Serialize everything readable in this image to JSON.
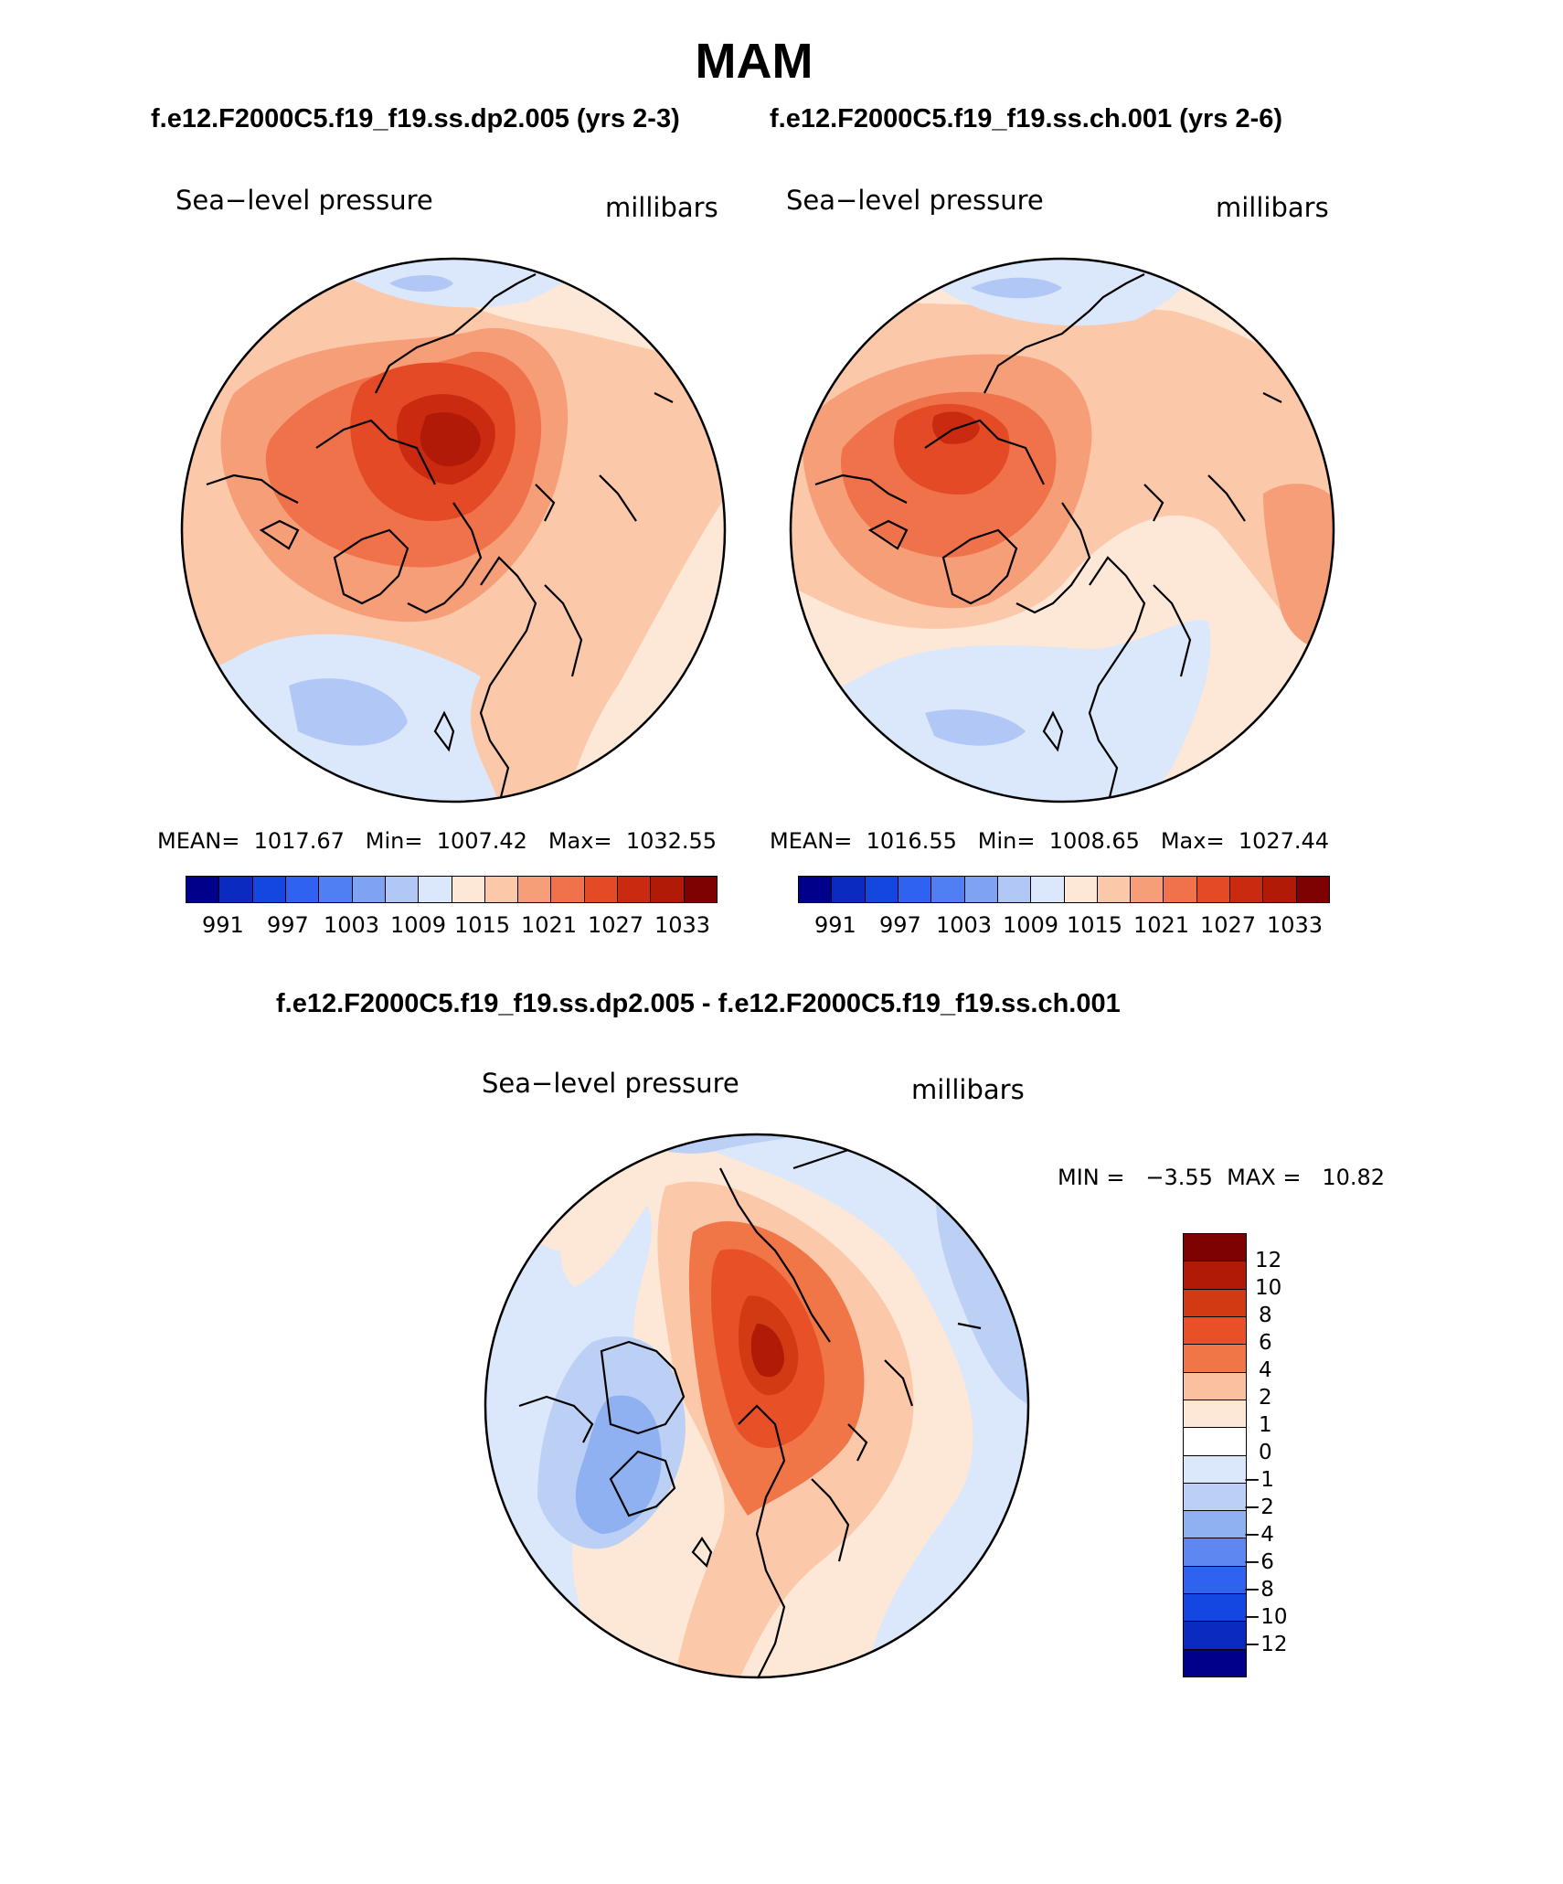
{
  "title": "MAM",
  "top_subtitle_left": "f.e12.F2000C5.f19_f19.ss.dp2.005 (yrs 2-3)",
  "top_subtitle_right": "f.e12.F2000C5.f19_f19.ss.ch.001 (yrs 2-6)",
  "diff_title": "f.e12.F2000C5.f19_f19.ss.dp2.005 - f.e12.F2000C5.f19_f19.ss.ch.001",
  "panels": {
    "left": {
      "variable": "Sea−level pressure",
      "units": "millibars",
      "stats": "MEAN=  1017.67   Min=  1007.42   Max=  1032.55",
      "tick_labels": [
        "991",
        "997",
        "1003",
        "1009",
        "1015",
        "1021",
        "1027",
        "1033"
      ]
    },
    "right": {
      "variable": "Sea−level pressure",
      "units": "millibars",
      "stats": "MEAN=  1016.55   Min=  1008.65   Max=  1027.44",
      "tick_labels": [
        "991",
        "997",
        "1003",
        "1009",
        "1015",
        "1021",
        "1027",
        "1033"
      ]
    },
    "diff": {
      "variable": "Sea−level pressure",
      "units": "millibars",
      "stats": "MIN =   −3.55  MAX =   10.82",
      "tick_labels": [
        "12",
        "10",
        "8",
        "6",
        "4",
        "2",
        "1",
        "0",
        "−1",
        "−2",
        "−4",
        "−6",
        "−8",
        "−10",
        "−12"
      ]
    }
  },
  "chart_data": [
    {
      "type": "contour-map",
      "title": "Sea-level pressure (f.e12.F2000C5.f19_f19.ss.dp2.005, yrs 2-3)",
      "units": "millibars",
      "projection": "north polar stereographic",
      "mean": 1017.67,
      "min": 1007.42,
      "max": 1032.55,
      "levels": [
        991,
        994,
        997,
        1000,
        1003,
        1006,
        1009,
        1012,
        1015,
        1018,
        1021,
        1024,
        1027,
        1030,
        1033
      ]
    },
    {
      "type": "contour-map",
      "title": "Sea-level pressure (f.e12.F2000C5.f19_f19.ss.ch.001, yrs 2-6)",
      "units": "millibars",
      "projection": "north polar stereographic",
      "mean": 1016.55,
      "min": 1008.65,
      "max": 1027.44,
      "levels": [
        991,
        994,
        997,
        1000,
        1003,
        1006,
        1009,
        1012,
        1015,
        1018,
        1021,
        1024,
        1027,
        1030,
        1033
      ]
    },
    {
      "type": "contour-map",
      "title": "Sea-level pressure difference (dp2.005 - ch.001)",
      "units": "millibars",
      "projection": "north polar stereographic",
      "min": -3.55,
      "max": 10.82,
      "levels": [
        -12,
        -10,
        -8,
        -6,
        -4,
        -2,
        -1,
        0,
        1,
        2,
        4,
        6,
        8,
        10,
        12
      ]
    }
  ],
  "palette": [
    "#00008b",
    "#0a2ac0",
    "#1447e0",
    "#2f62f0",
    "#4f7ff2",
    "#7fa3f2",
    "#b1c8f6",
    "#dbe7fb",
    "#fde7d6",
    "#fbc8aa",
    "#f69e78",
    "#f0724a",
    "#e34a25",
    "#c92a10",
    "#b01a06",
    "#7e0202"
  ],
  "diff_palette_top_to_bottom": [
    "#7e0202",
    "#b01a06",
    "#d23a14",
    "#e85027",
    "#f07648",
    "#fbc0a0",
    "#fde7d6",
    "#dbe7fb",
    "#bcd0f6",
    "#8fb1f2",
    "#5f87f1",
    "#2f62f0",
    "#1447e0",
    "#0a2ac0",
    "#00008b"
  ]
}
